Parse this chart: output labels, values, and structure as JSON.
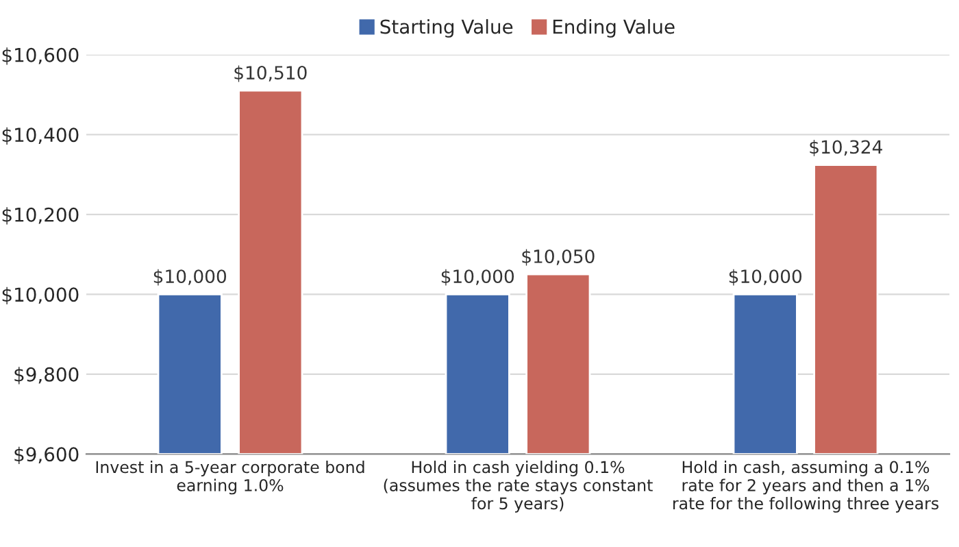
{
  "chart_data": {
    "type": "bar",
    "categories": [
      "Invest in a 5-year corporate bond\nearning 1.0%",
      "Hold in cash yielding 0.1%\n(assumes the rate stays constant\nfor 5 years)",
      "Hold in cash, assuming a 0.1%\nrate for 2 years and then a 1%\nrate for the following three years"
    ],
    "series": [
      {
        "name": "Starting Value",
        "color": "#4169ab",
        "values": [
          10000,
          10000,
          10000
        ],
        "value_labels": [
          "$10,000",
          "$10,000",
          "$10,000"
        ]
      },
      {
        "name": "Ending Value",
        "color": "#c8675c",
        "values": [
          10510,
          10050,
          10324
        ],
        "value_labels": [
          "$10,510",
          "$10,050",
          "$10,324"
        ]
      }
    ],
    "ylim": [
      9600,
      10600
    ],
    "yticks": [
      {
        "value": 9600,
        "label": "$9,600"
      },
      {
        "value": 9800,
        "label": "$9,800"
      },
      {
        "value": 10000,
        "label": "$10,000"
      },
      {
        "value": 10200,
        "label": "$10,200"
      },
      {
        "value": 10400,
        "label": "$10,400"
      },
      {
        "value": 10600,
        "label": "$10,600"
      }
    ],
    "grid": "y",
    "legend": "top"
  }
}
